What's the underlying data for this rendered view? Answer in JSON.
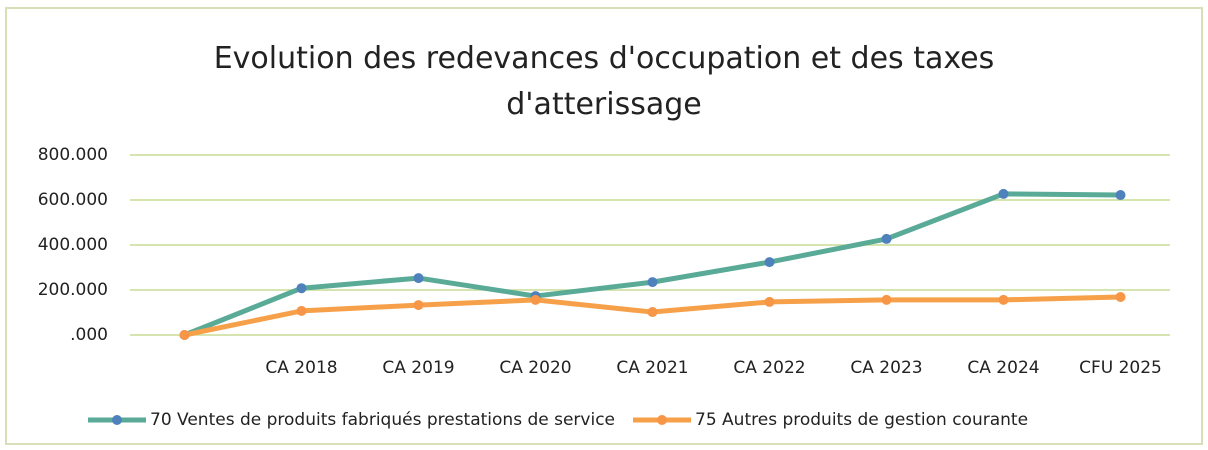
{
  "chart_data": {
    "type": "line",
    "title": "Evolution des redevances d'occupation et des taxes d'atterissage",
    "categories": [
      null,
      "CA 2018",
      "CA 2019",
      "CA 2020",
      "CA 2021",
      "CA 2022",
      "CA 2023",
      "CA 2024",
      "CFU 2025"
    ],
    "series": [
      {
        "name": "70 Ventes de produits fabriqués prestations de service",
        "color": "#5aaa98",
        "marker_color": "#4f81bd",
        "values": [
          0,
          208000,
          253000,
          173000,
          235000,
          324000,
          427000,
          627000,
          622000
        ]
      },
      {
        "name": "75 Autres produits de gestion courante",
        "color": "#f7a04a",
        "marker_color": "#f79646",
        "values": [
          0,
          107000,
          133000,
          156000,
          102000,
          147000,
          156000,
          156000,
          169000
        ]
      }
    ],
    "ylim": [
      0,
      800000
    ],
    "yticks": [
      {
        "value": 0,
        "label": ".000"
      },
      {
        "value": 200000,
        "label": "200.000"
      },
      {
        "value": 400000,
        "label": "400.000"
      },
      {
        "value": 600000,
        "label": "600.000"
      },
      {
        "value": 800000,
        "label": "800.000"
      }
    ],
    "grid": true,
    "legend": "bottom"
  }
}
